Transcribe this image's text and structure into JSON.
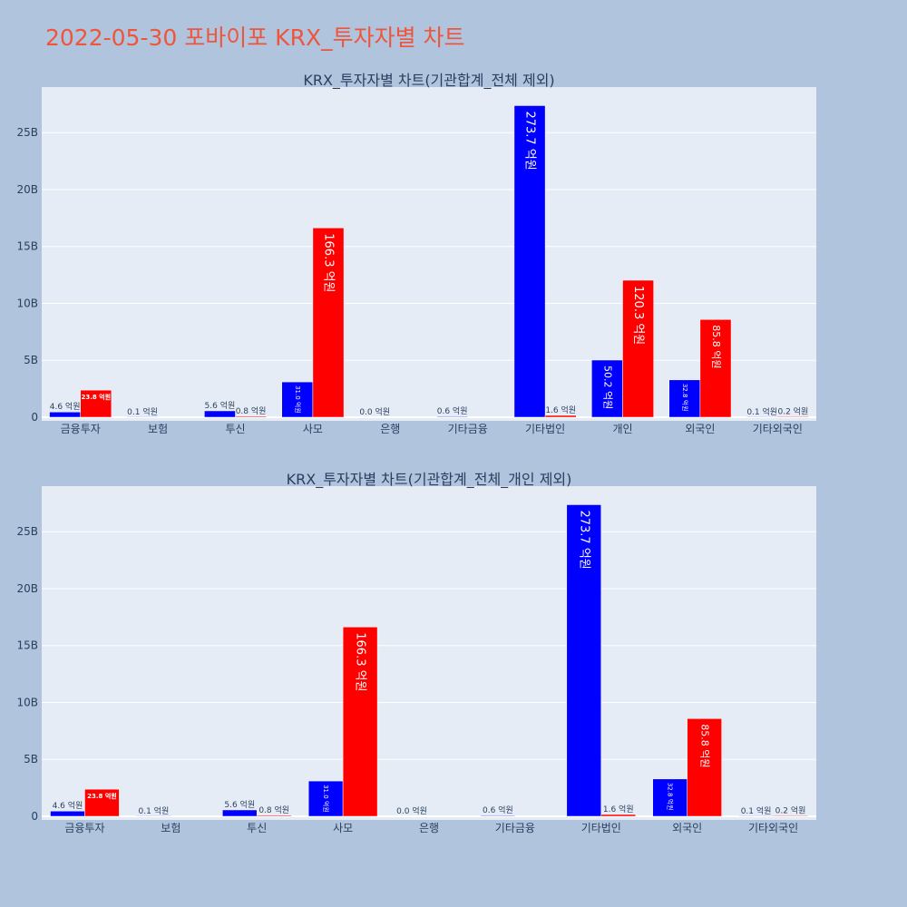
{
  "title": "2022-05-30 포바이포 KRX_투자자별 차트",
  "colors": {
    "buy": "#0000ff",
    "sell": "#ff0000",
    "plot_bg": "#e5ecf6",
    "page_bg": "#b0c4de",
    "title": "#ef553b"
  },
  "chart_data": [
    {
      "type": "bar",
      "title": "KRX_투자자별 차트(기관합계_전체 제외)",
      "categories": [
        "금융투자",
        "보험",
        "투신",
        "사모",
        "은행",
        "기타금융",
        "기타법인",
        "개인",
        "외국인",
        "기타외국인"
      ],
      "ylim": [
        0,
        29000000000
      ],
      "yticks": [
        0,
        5000000000,
        10000000000,
        15000000000,
        20000000000,
        25000000000
      ],
      "ytick_labels": [
        "0",
        "5B",
        "10B",
        "15B",
        "20B",
        "25B"
      ],
      "grid": true,
      "series": [
        {
          "values": [
            460000000,
            10000000,
            560000000,
            3100000000,
            0,
            60000000,
            27370000000,
            5020000000,
            3280000000,
            10000000
          ],
          "labels": [
            "4.6 억원",
            "0.1 억원",
            "5.6 억원",
            "31.0 억원",
            "0.0 억원",
            "0.6 억원",
            "273.7 억원",
            "50.2 억원",
            "32.8 억원",
            "0.1 억원"
          ]
        },
        {
          "values": [
            2380000000,
            0,
            80000000,
            16630000000,
            0,
            0,
            160000000,
            12030000000,
            8580000000,
            20000000
          ],
          "labels": [
            "23.8 억원",
            "",
            "0.8 억원",
            "166.3 억원",
            "",
            "",
            "1.6 억원",
            "120.3 억원",
            "85.8 억원",
            "0.2 억원"
          ]
        }
      ]
    },
    {
      "type": "bar",
      "title": "KRX_투자자별 차트(기관합계_전체_개인 제외)",
      "categories": [
        "금융투자",
        "보험",
        "투신",
        "사모",
        "은행",
        "기타금융",
        "기타법인",
        "외국인",
        "기타외국인"
      ],
      "ylim": [
        0,
        29000000000
      ],
      "yticks": [
        0,
        5000000000,
        10000000000,
        15000000000,
        20000000000,
        25000000000
      ],
      "ytick_labels": [
        "0",
        "5B",
        "10B",
        "15B",
        "20B",
        "25B"
      ],
      "grid": true,
      "series": [
        {
          "values": [
            460000000,
            10000000,
            560000000,
            3100000000,
            0,
            60000000,
            27370000000,
            3280000000,
            10000000
          ],
          "labels": [
            "4.6 억원",
            "0.1 억원",
            "5.6 억원",
            "31.0 억원",
            "0.0 억원",
            "0.6 억원",
            "273.7 억원",
            "32.8 억원",
            "0.1 억원"
          ]
        },
        {
          "values": [
            2380000000,
            0,
            80000000,
            16630000000,
            0,
            0,
            160000000,
            8580000000,
            20000000
          ],
          "labels": [
            "23.8 억원",
            "",
            "0.8 억원",
            "166.3 억원",
            "",
            "",
            "1.6 억원",
            "85.8 억원",
            "0.2 억원"
          ]
        }
      ]
    }
  ]
}
